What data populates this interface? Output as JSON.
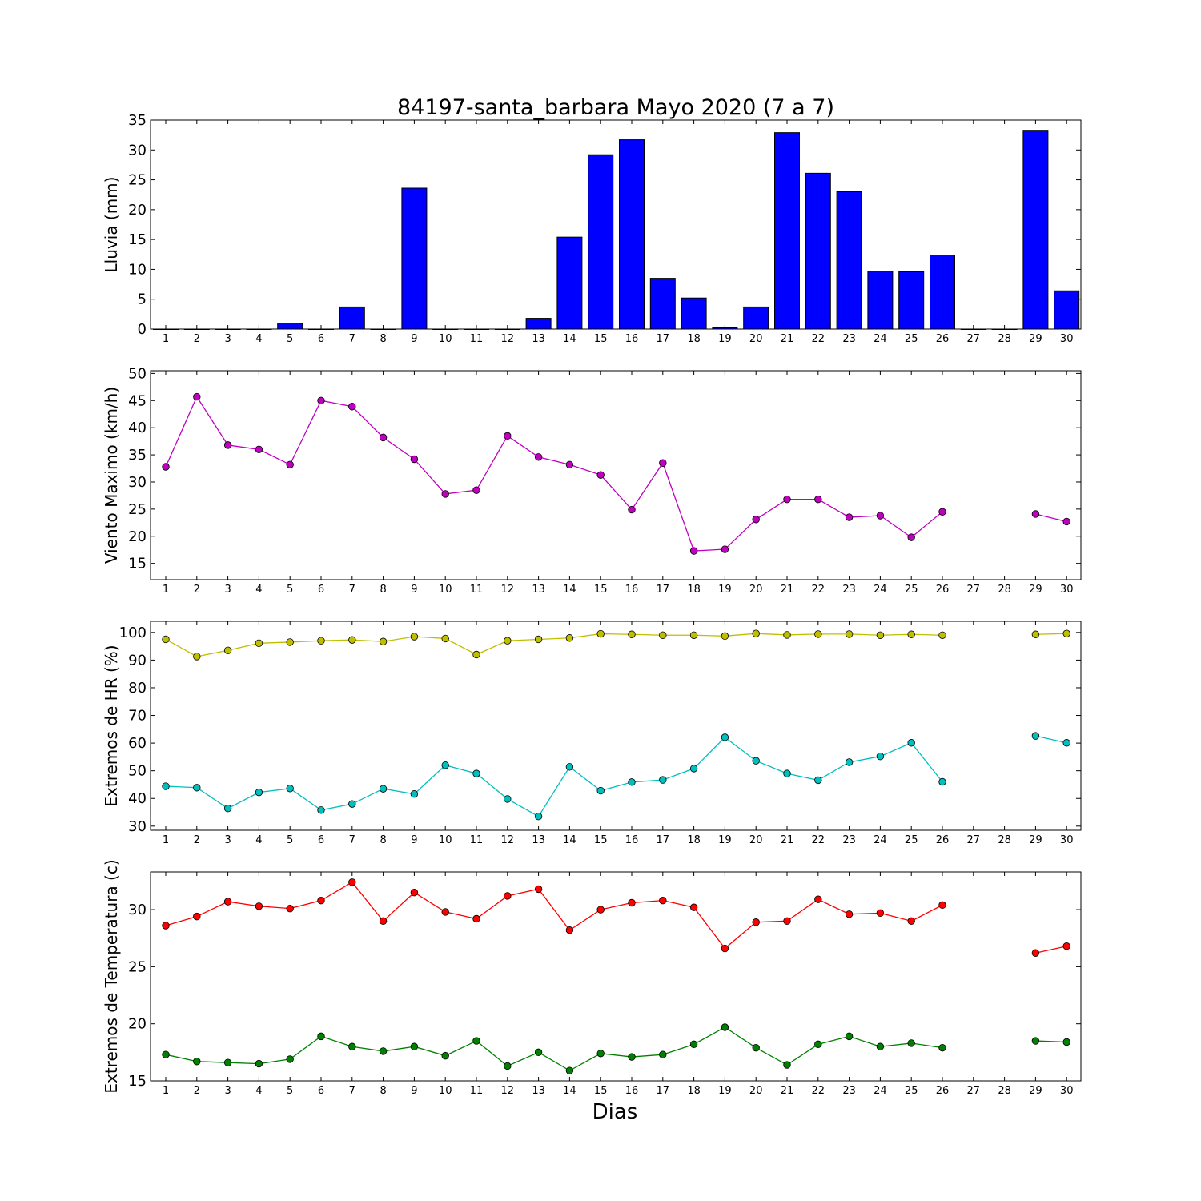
{
  "title": "84197-santa_barbara Mayo 2020  (7 a 7)",
  "xlabel": "Dias",
  "chart_data": [
    {
      "type": "bar",
      "ylabel": "Lluvia (mm)",
      "ylim": [
        0,
        35
      ],
      "yticks": [
        0,
        5,
        10,
        15,
        20,
        25,
        30,
        35
      ],
      "categories": [
        "1",
        "2",
        "3",
        "4",
        "5",
        "6",
        "7",
        "8",
        "9",
        "10",
        "11",
        "12",
        "13",
        "14",
        "15",
        "16",
        "17",
        "18",
        "19",
        "20",
        "21",
        "22",
        "23",
        "24",
        "25",
        "26",
        "27",
        "28",
        "29",
        "30"
      ],
      "values": [
        0,
        0,
        0,
        0,
        1.0,
        0,
        3.7,
        0,
        23.6,
        0,
        0,
        0,
        1.8,
        15.4,
        29.2,
        31.7,
        8.5,
        5.2,
        0.2,
        3.7,
        32.9,
        26.1,
        23.0,
        9.7,
        9.6,
        12.4,
        0,
        0,
        33.3,
        6.4
      ],
      "color": "#0000ff"
    },
    {
      "type": "line",
      "ylabel": "Viento Maximo (km/h)",
      "ylim": [
        12,
        50.5
      ],
      "yticks": [
        15,
        20,
        25,
        30,
        35,
        40,
        45,
        50
      ],
      "categories": [
        "1",
        "2",
        "3",
        "4",
        "5",
        "6",
        "7",
        "8",
        "9",
        "10",
        "11",
        "12",
        "13",
        "14",
        "15",
        "16",
        "17",
        "18",
        "19",
        "20",
        "21",
        "22",
        "23",
        "24",
        "25",
        "26",
        "27",
        "28",
        "29",
        "30"
      ],
      "series": [
        {
          "color": "#bf00bf",
          "values": [
            32.8,
            45.7,
            36.8,
            36.0,
            33.2,
            45.0,
            43.9,
            38.2,
            34.2,
            27.8,
            28.5,
            38.5,
            34.6,
            33.2,
            31.3,
            24.9,
            33.5,
            17.3,
            17.6,
            23.1,
            26.8,
            26.8,
            23.5,
            23.8,
            19.8,
            24.5,
            null,
            null,
            24.1,
            22.7
          ]
        }
      ]
    },
    {
      "type": "line",
      "ylabel": "Extremos de HR (%)",
      "ylim": [
        28.5,
        104
      ],
      "yticks": [
        30,
        40,
        50,
        60,
        70,
        80,
        90,
        100
      ],
      "categories": [
        "1",
        "2",
        "3",
        "4",
        "5",
        "6",
        "7",
        "8",
        "9",
        "10",
        "11",
        "12",
        "13",
        "14",
        "15",
        "16",
        "17",
        "18",
        "19",
        "20",
        "21",
        "22",
        "23",
        "24",
        "25",
        "26",
        "27",
        "28",
        "29",
        "30"
      ],
      "series": [
        {
          "color": "#bfbf00",
          "values": [
            97.5,
            91.3,
            93.5,
            96.1,
            96.5,
            97.0,
            97.3,
            96.7,
            98.5,
            97.8,
            92.0,
            97.0,
            97.5,
            98.0,
            99.5,
            99.3,
            99.0,
            99.0,
            98.7,
            99.6,
            99.1,
            99.4,
            99.4,
            99.0,
            99.3,
            99.0,
            null,
            null,
            99.3,
            99.6
          ]
        },
        {
          "color": "#00bfbf",
          "values": [
            44.4,
            43.9,
            36.4,
            42.2,
            43.6,
            35.8,
            38.0,
            43.5,
            41.6,
            52.0,
            49.0,
            39.8,
            33.5,
            51.4,
            42.8,
            45.9,
            46.7,
            50.8,
            62.1,
            53.6,
            49.0,
            46.6,
            53.1,
            55.2,
            60.1,
            46.0,
            null,
            null,
            62.6,
            60.1
          ]
        }
      ]
    },
    {
      "type": "line",
      "ylabel": "Extremos de Temperatura (c)",
      "ylim": [
        15,
        33.3
      ],
      "yticks": [
        15,
        20,
        25,
        30
      ],
      "categories": [
        "1",
        "2",
        "3",
        "4",
        "5",
        "6",
        "7",
        "8",
        "9",
        "10",
        "11",
        "12",
        "13",
        "14",
        "15",
        "16",
        "17",
        "18",
        "19",
        "20",
        "21",
        "22",
        "23",
        "24",
        "25",
        "26",
        "27",
        "28",
        "29",
        "30"
      ],
      "series": [
        {
          "color": "#ff0000",
          "values": [
            28.6,
            29.4,
            30.7,
            30.3,
            30.1,
            30.8,
            32.4,
            29.0,
            31.5,
            29.8,
            29.2,
            31.2,
            31.8,
            28.2,
            30.0,
            30.6,
            30.8,
            30.2,
            26.6,
            28.9,
            29.0,
            30.9,
            29.6,
            29.7,
            29.0,
            30.4,
            null,
            null,
            26.2,
            26.8
          ]
        },
        {
          "color": "#008000",
          "values": [
            17.3,
            16.7,
            16.6,
            16.5,
            16.9,
            18.9,
            18.0,
            17.6,
            18.0,
            17.2,
            18.5,
            16.3,
            17.5,
            15.9,
            17.4,
            17.1,
            17.3,
            18.2,
            19.7,
            17.9,
            16.4,
            18.2,
            18.9,
            18.0,
            18.3,
            17.9,
            null,
            null,
            18.5,
            18.4
          ]
        }
      ]
    }
  ]
}
